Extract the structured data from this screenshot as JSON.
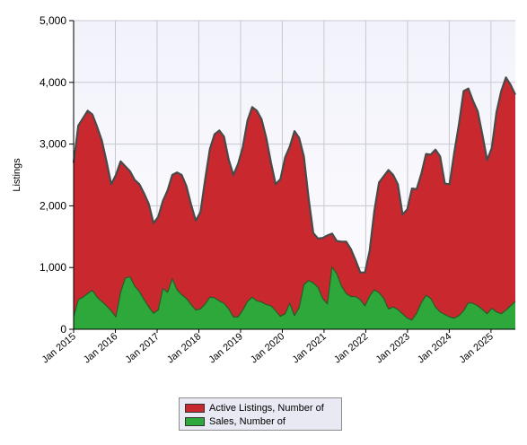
{
  "chart_data": {
    "type": "area",
    "ylabel": "Listings",
    "ylim": [
      0,
      5000
    ],
    "yticks": [
      "0",
      "1,000",
      "2,000",
      "3,000",
      "4,000",
      "5,000"
    ],
    "ytick_values": [
      0,
      1000,
      2000,
      3000,
      4000,
      5000
    ],
    "xticks": [
      "Jan 2015",
      "Jan 2016",
      "Jan 2017",
      "Jan 2018",
      "Jan 2019",
      "Jan 2020",
      "Jan 2021",
      "Jan 2022",
      "Jan 2023",
      "Jan 2024",
      "Jan 2025"
    ],
    "x_start": "2015-01",
    "x_end": "2025-08",
    "grid": true,
    "legend_position": "bottom",
    "series": [
      {
        "name": "Active Listings, Number of",
        "color": "#c8282e",
        "values": [
          2700,
          3300,
          3420,
          3540,
          3480,
          3280,
          3060,
          2720,
          2350,
          2500,
          2720,
          2640,
          2560,
          2420,
          2350,
          2200,
          2030,
          1720,
          1820,
          2080,
          2250,
          2500,
          2540,
          2500,
          2320,
          2020,
          1760,
          1900,
          2430,
          2920,
          3160,
          3220,
          3120,
          2750,
          2500,
          2680,
          2950,
          3380,
          3600,
          3540,
          3400,
          3100,
          2700,
          2350,
          2430,
          2780,
          2960,
          3210,
          3100,
          2800,
          2130,
          1560,
          1470,
          1480,
          1520,
          1550,
          1430,
          1420,
          1420,
          1300,
          1120,
          920,
          920,
          1270,
          1920,
          2380,
          2480,
          2580,
          2500,
          2350,
          1860,
          1940,
          2280,
          2270,
          2520,
          2840,
          2830,
          2910,
          2800,
          2360,
          2350,
          2860,
          3320,
          3860,
          3900,
          3700,
          3530,
          3150,
          2740,
          2940,
          3520,
          3860,
          4080,
          3960,
          3800
        ]
      },
      {
        "name": "Sales, Number of",
        "color": "#2ea83a",
        "values": [
          200,
          480,
          520,
          580,
          630,
          520,
          450,
          380,
          300,
          200,
          600,
          830,
          850,
          700,
          610,
          480,
          360,
          260,
          310,
          660,
          600,
          820,
          640,
          560,
          500,
          400,
          310,
          330,
          410,
          520,
          510,
          460,
          420,
          330,
          200,
          200,
          310,
          450,
          520,
          460,
          440,
          400,
          380,
          300,
          210,
          250,
          420,
          220,
          350,
          720,
          790,
          750,
          680,
          500,
          410,
          1010,
          900,
          700,
          580,
          530,
          530,
          480,
          380,
          540,
          640,
          590,
          500,
          330,
          360,
          320,
          250,
          180,
          150,
          260,
          430,
          550,
          500,
          360,
          280,
          240,
          200,
          180,
          220,
          300,
          430,
          420,
          380,
          320,
          250,
          340,
          280,
          250,
          310,
          380,
          450
        ]
      }
    ]
  }
}
